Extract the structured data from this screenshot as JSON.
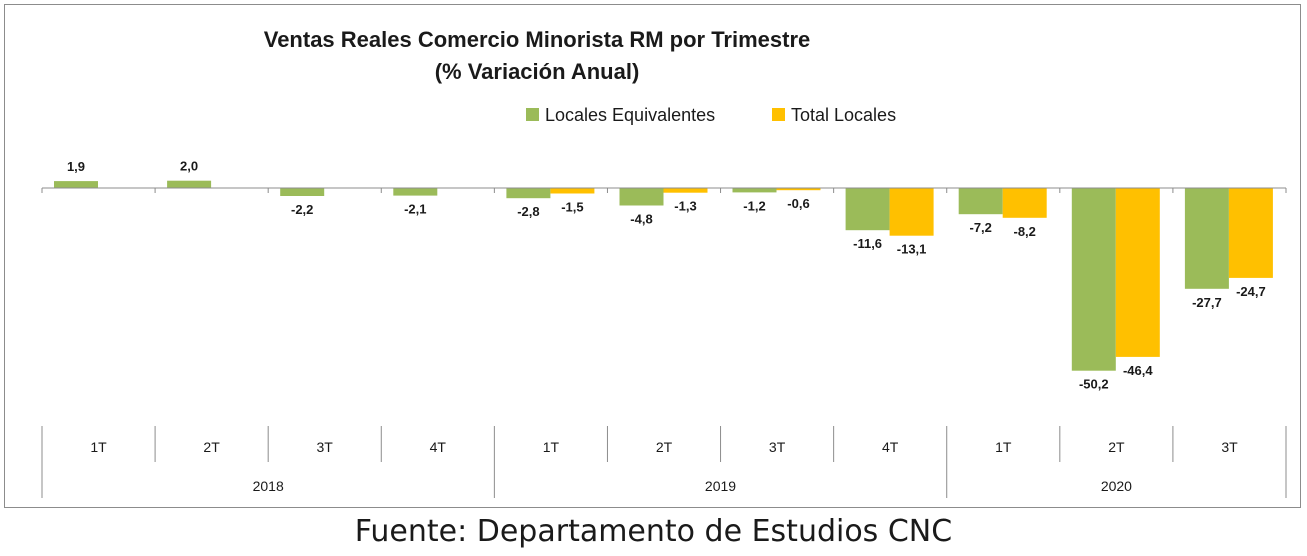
{
  "chart_data": {
    "type": "bar",
    "title": "Ventas Reales Comercio Minorista RM por Trimestre",
    "subtitle": "(% Variación Anual)",
    "legend_position": "top-right",
    "categories": [
      "1T",
      "2T",
      "3T",
      "4T",
      "1T",
      "2T",
      "3T",
      "4T",
      "1T",
      "2T",
      "3T"
    ],
    "groups": [
      {
        "label": "2018",
        "count": 4
      },
      {
        "label": "2019",
        "count": 4
      },
      {
        "label": "2020",
        "count": 3
      }
    ],
    "series": [
      {
        "name": "Locales Equivalentes",
        "color": "#9bbb59",
        "values": [
          1.9,
          2.0,
          -2.2,
          -2.1,
          -2.8,
          -4.8,
          -1.2,
          -11.6,
          -7.2,
          -50.2,
          -27.7
        ],
        "labels": [
          "1,9",
          "2,0",
          "-2,2",
          "-2,1",
          "-2,8",
          "-4,8",
          "-1,2",
          "-11,6",
          "-7,2",
          "-50,2",
          "-27,7"
        ]
      },
      {
        "name": "Total Locales",
        "color": "#ffc000",
        "values": [
          null,
          null,
          null,
          null,
          -1.5,
          -1.3,
          -0.6,
          -13.1,
          -8.2,
          -46.4,
          -24.7
        ],
        "labels": [
          null,
          null,
          null,
          null,
          "-1,5",
          "-1,3",
          "-0,6",
          "-13,1",
          "-8,2",
          "-46,4",
          "-24,7"
        ]
      }
    ],
    "ylim": [
      -60,
      5
    ],
    "grid": false
  },
  "source": "Fuente: Departamento de Estudios CNC"
}
